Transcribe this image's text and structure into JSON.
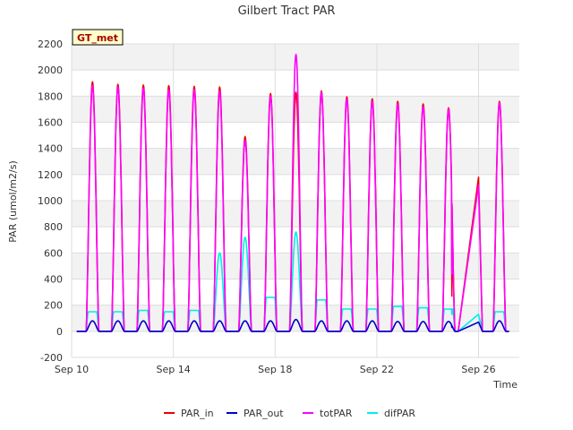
{
  "chart_data": {
    "type": "line",
    "title": "Gilbert Tract PAR",
    "xlabel": "Time",
    "ylabel": "PAR (umol/m2/s)",
    "ylim": [
      -200,
      2200
    ],
    "yticks": [
      -200,
      0,
      200,
      400,
      600,
      800,
      1000,
      1200,
      1400,
      1600,
      1800,
      2000,
      2200
    ],
    "xlim": [
      10,
      27.6
    ],
    "xticks": [
      {
        "value": 10,
        "label": "Sep 10"
      },
      {
        "value": 14,
        "label": "Sep 14"
      },
      {
        "value": 18,
        "label": "Sep 18"
      },
      {
        "value": 22,
        "label": "Sep 22"
      },
      {
        "value": 26,
        "label": "Sep 26"
      }
    ],
    "badge": "GT_met",
    "legend_position": "bottom",
    "days": [
      {
        "start": 10.2,
        "peak_day": 10.82,
        "end": 11.2,
        "in": 1910,
        "tot": 1880,
        "out": 80,
        "dif": 150
      },
      {
        "start": 11.2,
        "peak_day": 11.82,
        "end": 12.2,
        "in": 1890,
        "tot": 1870,
        "out": 80,
        "dif": 150
      },
      {
        "start": 12.2,
        "peak_day": 12.82,
        "end": 13.2,
        "in": 1885,
        "tot": 1860,
        "out": 80,
        "dif": 160
      },
      {
        "start": 13.2,
        "peak_day": 13.82,
        "end": 14.2,
        "in": 1880,
        "tot": 1850,
        "out": 80,
        "dif": 150
      },
      {
        "start": 14.2,
        "peak_day": 14.82,
        "end": 15.2,
        "in": 1875,
        "tot": 1850,
        "out": 80,
        "dif": 160
      },
      {
        "start": 15.2,
        "peak_day": 15.82,
        "end": 16.2,
        "in": 1870,
        "tot": 1840,
        "out": 80,
        "dif": 600
      },
      {
        "start": 16.2,
        "peak_day": 16.82,
        "end": 17.2,
        "in": 1490,
        "tot": 1460,
        "out": 80,
        "dif": 720
      },
      {
        "start": 17.2,
        "peak_day": 17.82,
        "end": 18.2,
        "in": 1820,
        "tot": 1800,
        "out": 80,
        "dif": 260
      },
      {
        "start": 18.2,
        "peak_day": 18.82,
        "end": 19.2,
        "in": 1830,
        "tot": 2120,
        "out": 90,
        "dif": 760
      },
      {
        "start": 19.2,
        "peak_day": 19.82,
        "end": 20.2,
        "in": 1840,
        "tot": 1830,
        "out": 80,
        "dif": 240
      },
      {
        "start": 20.2,
        "peak_day": 20.82,
        "end": 21.2,
        "in": 1795,
        "tot": 1780,
        "out": 80,
        "dif": 170
      },
      {
        "start": 21.2,
        "peak_day": 21.82,
        "end": 22.2,
        "in": 1780,
        "tot": 1760,
        "out": 80,
        "dif": 170
      },
      {
        "start": 22.2,
        "peak_day": 22.82,
        "end": 23.2,
        "in": 1760,
        "tot": 1740,
        "out": 75,
        "dif": 190
      },
      {
        "start": 23.2,
        "peak_day": 23.82,
        "end": 24.2,
        "in": 1740,
        "tot": 1720,
        "out": 75,
        "dif": 180
      },
      {
        "start": 24.2,
        "peak_day": 24.82,
        "end": 25.2,
        "in": 1710,
        "tot": 1700,
        "out": 75,
        "dif": 170
      },
      {
        "start": 26.2,
        "peak_day": 26.82,
        "end": 27.2,
        "in": 1760,
        "tot": 1750,
        "out": 80,
        "dif": 150
      }
    ],
    "gap_segment": {
      "x": [
        24.95,
        26.0,
        26.15
      ],
      "PAR_in": [
        270,
        1180,
        0
      ],
      "totPAR": [
        440,
        1120,
        0
      ],
      "PAR_out": [
        30,
        70,
        0
      ],
      "difPAR": [
        130,
        130,
        0
      ]
    },
    "series": [
      {
        "name": "PAR_in",
        "color": "#ee0000"
      },
      {
        "name": "PAR_out",
        "color": "#0000cc"
      },
      {
        "name": "totPAR",
        "color": "#ff00ff"
      },
      {
        "name": "difPAR",
        "color": "#00eeee"
      }
    ]
  }
}
